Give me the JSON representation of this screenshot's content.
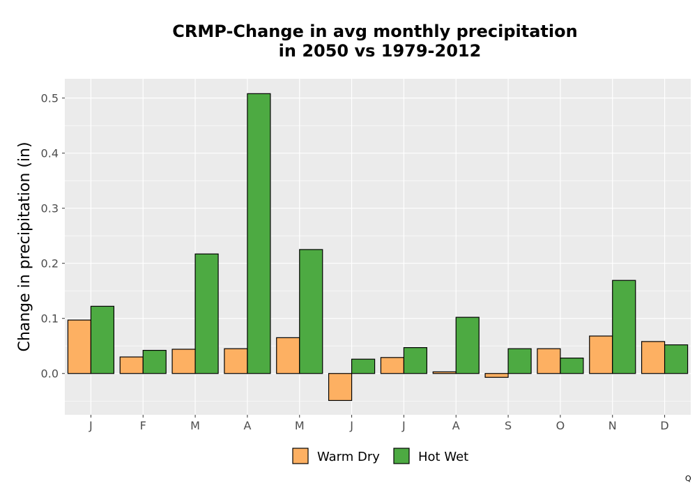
{
  "chart_data": {
    "type": "bar",
    "title_lines": [
      "CRMP-Change in avg monthly precipitation",
      "in 2050 vs 1979-2012"
    ],
    "xlabel": "",
    "ylabel": "Change in precipitation (in)",
    "categories": [
      "J",
      "F",
      "M",
      "A",
      "M",
      "J",
      "J",
      "A",
      "S",
      "O",
      "N",
      "D"
    ],
    "series": [
      {
        "name": "Warm Dry",
        "color": "#FDB062",
        "values": [
          0.097,
          0.03,
          0.044,
          0.045,
          0.065,
          -0.049,
          0.029,
          0.003,
          -0.007,
          0.045,
          0.068,
          0.058
        ]
      },
      {
        "name": "Hot Wet",
        "color": "#4DAA42",
        "values": [
          0.122,
          0.042,
          0.217,
          0.508,
          0.225,
          0.026,
          0.047,
          0.102,
          0.045,
          0.028,
          0.169,
          0.052
        ]
      }
    ],
    "ylim": [
      -0.075,
      0.535
    ],
    "yticks": [
      0.0,
      0.1,
      0.2,
      0.3,
      0.4,
      0.5
    ],
    "ytick_labels": [
      "0.0",
      "0.1",
      "0.2",
      "0.3",
      "0.4",
      "0.5"
    ],
    "grid": true,
    "panel_color": "#EBEBEB",
    "legend_position": "bottom"
  },
  "corner_mark": "Q"
}
